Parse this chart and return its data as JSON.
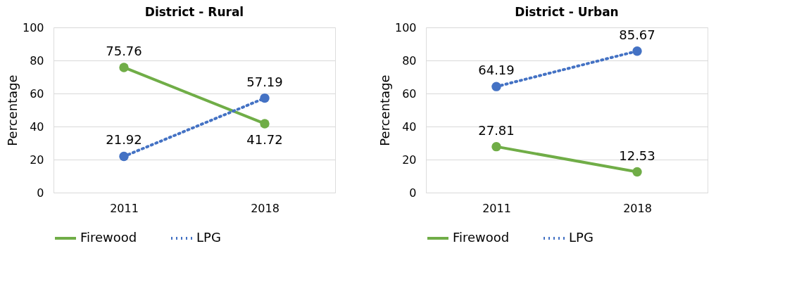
{
  "chart_data": [
    {
      "type": "line",
      "title": "District - Rural",
      "ylabel": "Percentage",
      "categories": [
        "2011",
        "2018"
      ],
      "ylim": [
        0,
        100
      ],
      "yticks": [
        0,
        20,
        40,
        60,
        80,
        100
      ],
      "grid": "y",
      "legend": "bottom",
      "data_labels": true,
      "marker": "circle",
      "series": [
        {
          "name": "Firewood",
          "color": "#70ad47",
          "line_style": "solid",
          "values": [
            75.76,
            41.72
          ]
        },
        {
          "name": "LPG",
          "color": "#4472c4",
          "line_style": "dotted",
          "values": [
            21.92,
            57.19
          ]
        }
      ]
    },
    {
      "type": "line",
      "title": "District - Urban",
      "ylabel": "Percentage",
      "categories": [
        "2011",
        "2018"
      ],
      "ylim": [
        0,
        100
      ],
      "yticks": [
        0,
        20,
        40,
        60,
        80,
        100
      ],
      "grid": "y",
      "legend": "bottom",
      "data_labels": true,
      "marker": "circle",
      "series": [
        {
          "name": "Firewood",
          "color": "#70ad47",
          "line_style": "solid",
          "values": [
            27.81,
            12.53
          ]
        },
        {
          "name": "LPG",
          "color": "#4472c4",
          "line_style": "dotted",
          "values": [
            64.19,
            85.67
          ]
        }
      ]
    }
  ]
}
